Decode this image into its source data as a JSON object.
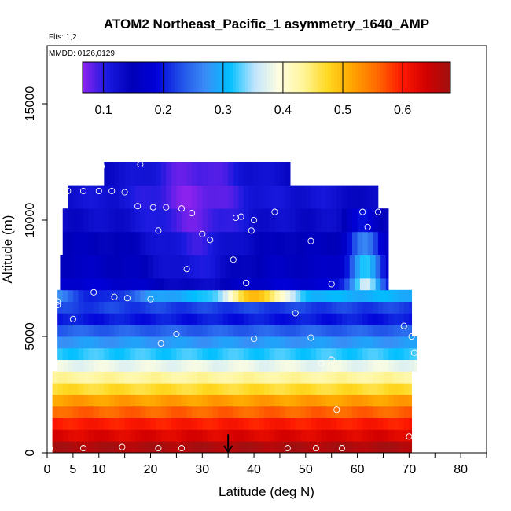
{
  "chart_data": {
    "type": "heatmap",
    "title": "ATOM2 Northeast_Pacific_1 asymmetry_1640_AMP",
    "flights_label": "Flts: 1,2",
    "dates_label": "MMDD: 0126,0129",
    "xlabel": "Latitude (deg N)",
    "ylabel": "Altitude (m)",
    "xlim": [
      0,
      85
    ],
    "ylim": [
      0,
      17500
    ],
    "x_ticks": [
      0,
      5,
      10,
      20,
      30,
      40,
      50,
      60,
      70,
      80
    ],
    "y_ticks": [
      0,
      5000,
      10000,
      15000
    ],
    "colorbar": {
      "range": [
        0.065,
        0.68
      ],
      "ticks": [
        0.1,
        0.2,
        0.3,
        0.4,
        0.5,
        0.6
      ],
      "tick_labels": [
        "0.1",
        "0.2",
        "0.3",
        "0.4",
        "0.5",
        "0.6"
      ],
      "colors": [
        "#8b22ee",
        "#1a1ae0",
        "#0000b8",
        "#0000d8",
        "#2050e8",
        "#3a8cf6",
        "#00bfff",
        "#bfe4ff",
        "#fffee0",
        "#fff59a",
        "#ffd820",
        "#ffa500",
        "#ff6a00",
        "#ff1a00",
        "#d20000",
        "#a01010"
      ]
    },
    "altitude_bands_m": [
      {
        "y0": 0,
        "y1": 500,
        "value": 0.67
      },
      {
        "y0": 500,
        "y1": 1000,
        "value": 0.63
      },
      {
        "y0": 1000,
        "y1": 1500,
        "value": 0.6
      },
      {
        "y0": 1500,
        "y1": 2000,
        "value": 0.56
      },
      {
        "y0": 2000,
        "y1": 2500,
        "value": 0.52
      },
      {
        "y0": 2500,
        "y1": 3000,
        "value": 0.47
      },
      {
        "y0": 3000,
        "y1": 3500,
        "value": 0.43
      },
      {
        "y0": 3500,
        "y1": 4000,
        "value": 0.38
      },
      {
        "y0": 4000,
        "y1": 4500,
        "value": 0.32
      },
      {
        "y0": 4500,
        "y1": 5000,
        "value": 0.28
      },
      {
        "y0": 5000,
        "y1": 5500,
        "value": 0.24
      },
      {
        "y0": 5500,
        "y1": 6000,
        "value": 0.2
      },
      {
        "y0": 6000,
        "y1": 6500,
        "value": 0.22
      },
      {
        "y0": 6500,
        "y1": 7000,
        "value": 0.3
      },
      {
        "y0": 7000,
        "y1": 7500,
        "value": 0.18
      },
      {
        "y0": 7500,
        "y1": 8500,
        "value": 0.16
      },
      {
        "y0": 8500,
        "y1": 9500,
        "value": 0.15
      },
      {
        "y0": 9500,
        "y1": 10500,
        "value": 0.13
      },
      {
        "y0": 10500,
        "y1": 11500,
        "value": 0.12
      },
      {
        "y0": 11500,
        "y1": 12500,
        "value": 0.13
      }
    ],
    "observations": [
      {
        "lat": 0.5,
        "alt": 200
      },
      {
        "lat": 7,
        "alt": 200
      },
      {
        "lat": 14.5,
        "alt": 250
      },
      {
        "lat": 21.5,
        "alt": 200
      },
      {
        "lat": 26,
        "alt": 200
      },
      {
        "lat": 46.5,
        "alt": 200
      },
      {
        "lat": 52,
        "alt": 200
      },
      {
        "lat": 57,
        "alt": 200
      },
      {
        "lat": 70,
        "alt": 700
      },
      {
        "lat": 56,
        "alt": 1850
      },
      {
        "lat": 53,
        "alt": 3850
      },
      {
        "lat": 55,
        "alt": 4000
      },
      {
        "lat": 71,
        "alt": 4300
      },
      {
        "lat": 22,
        "alt": 4700
      },
      {
        "lat": 25,
        "alt": 5100
      },
      {
        "lat": 40,
        "alt": 4900
      },
      {
        "lat": 51,
        "alt": 4950
      },
      {
        "lat": 70.5,
        "alt": 5000
      },
      {
        "lat": 69,
        "alt": 5450
      },
      {
        "lat": 5,
        "alt": 5750
      },
      {
        "lat": 48,
        "alt": 6000
      },
      {
        "lat": 2,
        "alt": 6500
      },
      {
        "lat": 2,
        "alt": 6350
      },
      {
        "lat": 13,
        "alt": 6700
      },
      {
        "lat": 15.5,
        "alt": 6650
      },
      {
        "lat": 20,
        "alt": 6600
      },
      {
        "lat": 9,
        "alt": 6900
      },
      {
        "lat": 38.5,
        "alt": 7300
      },
      {
        "lat": 55,
        "alt": 7250
      },
      {
        "lat": 27,
        "alt": 7900
      },
      {
        "lat": 36,
        "alt": 8300
      },
      {
        "lat": 31.5,
        "alt": 9150
      },
      {
        "lat": 30,
        "alt": 9400
      },
      {
        "lat": 21.5,
        "alt": 9550
      },
      {
        "lat": 39.5,
        "alt": 9550
      },
      {
        "lat": 51,
        "alt": 9100
      },
      {
        "lat": 62,
        "alt": 9700
      },
      {
        "lat": 36.5,
        "alt": 10100
      },
      {
        "lat": 37.5,
        "alt": 10150
      },
      {
        "lat": 40,
        "alt": 10000
      },
      {
        "lat": 44,
        "alt": 10350
      },
      {
        "lat": 26,
        "alt": 10500
      },
      {
        "lat": 28,
        "alt": 10300
      },
      {
        "lat": 17.5,
        "alt": 10600
      },
      {
        "lat": 20.5,
        "alt": 10550
      },
      {
        "lat": 23,
        "alt": 10550
      },
      {
        "lat": 61,
        "alt": 10350
      },
      {
        "lat": 64,
        "alt": 10350
      },
      {
        "lat": 70,
        "alt": 10950
      },
      {
        "lat": 4,
        "alt": 11250
      },
      {
        "lat": 7,
        "alt": 11250
      },
      {
        "lat": 10,
        "alt": 11250
      },
      {
        "lat": 12.5,
        "alt": 11250
      },
      {
        "lat": 15,
        "alt": 11200
      },
      {
        "lat": 10.5,
        "alt": 12300
      },
      {
        "lat": 18,
        "alt": 12400
      }
    ],
    "marker": {
      "lat": 35,
      "alt_top": 800,
      "alt_bottom": 0
    }
  }
}
